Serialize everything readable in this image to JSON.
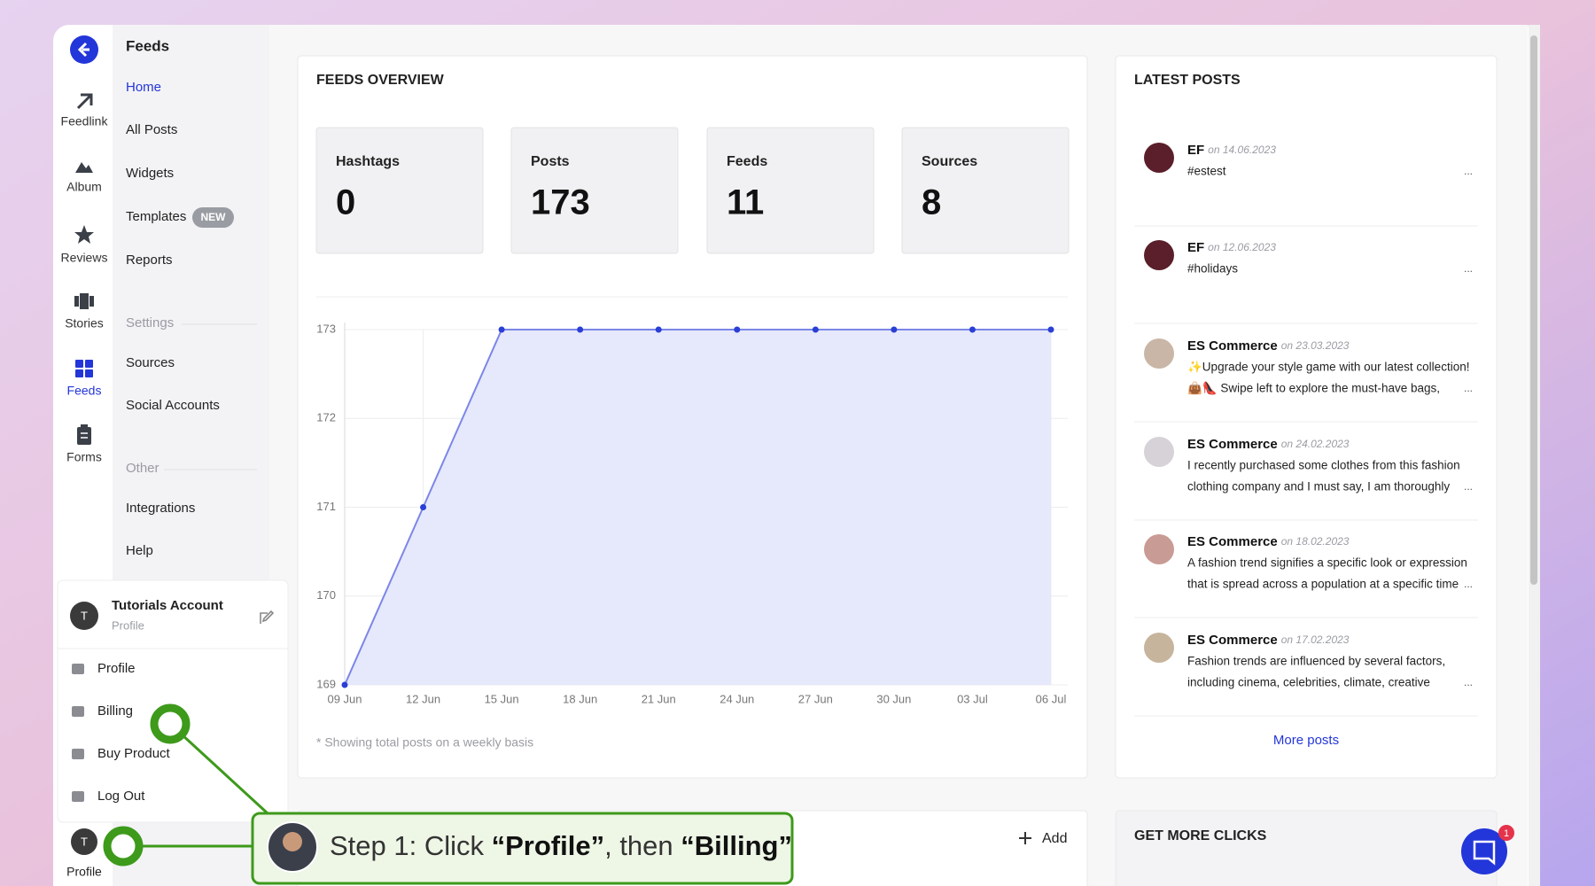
{
  "sidebar": {
    "nav": [
      {
        "label": "Feedlink"
      },
      {
        "label": "Album"
      },
      {
        "label": "Reviews"
      },
      {
        "label": "Stories"
      },
      {
        "label": "Feeds"
      },
      {
        "label": "Forms"
      }
    ],
    "profile_avatar": "T",
    "profile_label": "Profile"
  },
  "menu": {
    "title": "Feeds",
    "items": [
      "Home",
      "All Posts",
      "Widgets",
      "Templates",
      "Reports"
    ],
    "badge": "NEW",
    "settings_heading": "Settings",
    "settings_items": [
      "Sources",
      "Social Accounts"
    ],
    "other_heading": "Other",
    "other_items": [
      "Integrations",
      "Help"
    ]
  },
  "account": {
    "avatar": "T",
    "name": "Tutorials Account",
    "subtitle": "Profile",
    "items": [
      "Profile",
      "Billing",
      "Buy Product",
      "Log Out"
    ]
  },
  "overview": {
    "title": "FEEDS OVERVIEW",
    "stats": [
      {
        "label": "Hashtags",
        "value": 0
      },
      {
        "label": "Posts",
        "value": 173
      },
      {
        "label": "Feeds",
        "value": 11
      },
      {
        "label": "Sources",
        "value": 8
      }
    ],
    "note": "* Showing total posts on a weekly basis"
  },
  "chart_data": {
    "type": "line",
    "categories": [
      "09 Jun",
      "12 Jun",
      "15 Jun",
      "18 Jun",
      "21 Jun",
      "24 Jun",
      "27 Jun",
      "30 Jun",
      "03 Jul",
      "06 Jul"
    ],
    "values": [
      169,
      171,
      173,
      173,
      173,
      173,
      173,
      173,
      173,
      173
    ],
    "ylim": [
      169,
      173
    ],
    "yticks": [
      169,
      170,
      171,
      172,
      173
    ],
    "color": "#7b86e8",
    "point_color": "#2a3fd6",
    "fill": "#e6e8fb",
    "grid": true
  },
  "latest_posts": {
    "title": "LATEST POSTS",
    "ellipsis": "...",
    "more": "More posts",
    "posts": [
      {
        "author": "EF",
        "date": "on 14.06.2023",
        "lines": [
          "#estest"
        ]
      },
      {
        "author": "EF",
        "date": "on 12.06.2023",
        "lines": [
          "#holidays"
        ]
      },
      {
        "author": "ES Commerce",
        "date": "on 23.03.2023",
        "lines": [
          "✨Upgrade your style game with our latest collection!",
          "👜👠 Swipe left to explore the must-have bags,"
        ]
      },
      {
        "author": "ES Commerce",
        "date": "on 24.02.2023",
        "lines": [
          "I recently purchased some clothes from this fashion",
          "clothing company and I must say, I am thoroughly"
        ]
      },
      {
        "author": "ES Commerce",
        "date": "on 18.02.2023",
        "lines": [
          "A fashion trend signifies a specific look or expression",
          "that is spread across a population at a specific time"
        ]
      },
      {
        "author": "ES Commerce",
        "date": "on 17.02.2023",
        "lines": [
          "Fashion trends are influenced by several factors,",
          "including cinema, celebrities, climate, creative"
        ]
      }
    ]
  },
  "bottom": {
    "add": "Add",
    "clicks_title": "GET MORE CLICKS",
    "chat_badge": 1
  },
  "callout": {
    "parts": [
      "Step 1: Click ",
      "“Profile”",
      ", then ",
      "“Billing”"
    ]
  }
}
